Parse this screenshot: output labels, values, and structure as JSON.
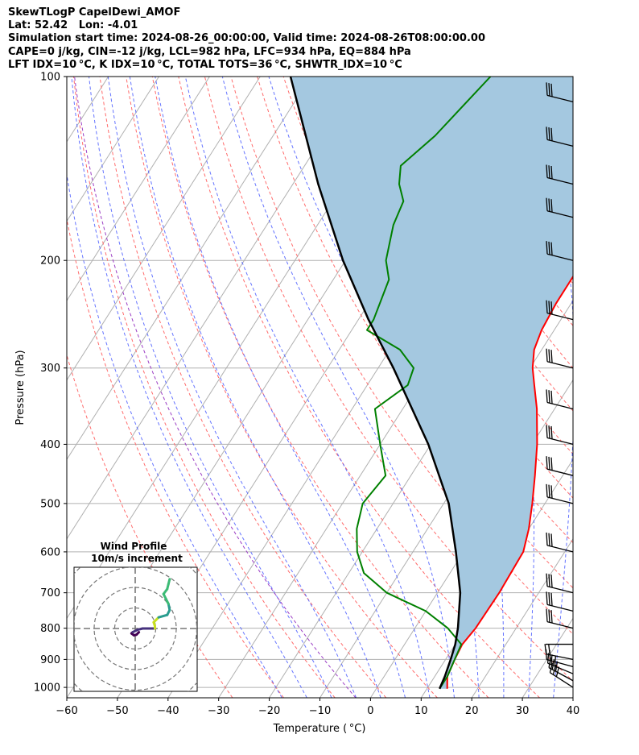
{
  "header": {
    "line1": "SkewTLogP CapelDewi_AMOF",
    "line2": "Lat: 52.42   Lon: -4.01",
    "line3": "Simulation start time: 2024-08-26_00:00:00, Valid time: 2024-08-26T08:00:00.00",
    "line4": "CAPE=0 j/kg, CIN=-12 j/kg, LCL=982 hPa, LFC=934 hPa, EQ=884 hPa",
    "line5": "LFT IDX=10$^\\circ$C, K IDX=10$^\\circ$C, TOTAL TOTS=36$^\\circ$C, SHWTR_IDX=10$^\\circ$C"
  },
  "header_display": {
    "line5": "LFT IDX=10 °C, K IDX=10 °C, TOTAL TOTS=36 °C, SHWTR_IDX=10 °C"
  },
  "chart_data": {
    "type": "line",
    "subtype": "skew-T log-P",
    "xlabel": "Temperature ( °C)",
    "ylabel": "Pressure (hPa)",
    "xlim": [
      -60,
      40
    ],
    "ylim": [
      1040,
      100
    ],
    "y_scale": "log",
    "x_ticks": [
      "−60",
      "−50",
      "−40",
      "−30",
      "−20",
      "−10",
      "0",
      "10",
      "20",
      "30",
      "40"
    ],
    "y_ticks": [
      "100",
      "200",
      "300",
      "400",
      "500",
      "600",
      "700",
      "800",
      "900",
      "1000"
    ],
    "grid": true,
    "series": [
      {
        "name": "temperature",
        "color": "#ff0000",
        "points": [
          [
            1005,
            14.0
          ],
          [
            960,
            12.5
          ],
          [
            900,
            11.8
          ],
          [
            850,
            11.4
          ],
          [
            800,
            12.0
          ],
          [
            700,
            12.2
          ],
          [
            600,
            11.8
          ],
          [
            550,
            10.0
          ],
          [
            500,
            7.5
          ],
          [
            450,
            4.5
          ],
          [
            400,
            1.0
          ],
          [
            350,
            -3.5
          ],
          [
            320,
            -7.0
          ],
          [
            300,
            -9.5
          ],
          [
            280,
            -11.5
          ],
          [
            260,
            -12.5
          ],
          [
            235,
            -13.0
          ],
          [
            205,
            -13.0
          ],
          [
            200,
            -12.0
          ],
          [
            185,
            -13.0
          ],
          [
            170,
            -15.0
          ],
          [
            155,
            -19.0
          ],
          [
            140,
            -24.0
          ],
          [
            125,
            -29.0
          ],
          [
            110,
            -33.0
          ],
          [
            100,
            -36.0
          ]
        ]
      },
      {
        "name": "dewpoint",
        "color": "#008000",
        "points": [
          [
            1005,
            12.5
          ],
          [
            960,
            12.5
          ],
          [
            900,
            11.8
          ],
          [
            850,
            11.2
          ],
          [
            800,
            6.5
          ],
          [
            750,
            0.0
          ],
          [
            700,
            -10.0
          ],
          [
            650,
            -17.0
          ],
          [
            600,
            -21.0
          ],
          [
            550,
            -24.0
          ],
          [
            500,
            -26.0
          ],
          [
            450,
            -25.0
          ],
          [
            400,
            -30.0
          ],
          [
            350,
            -35.5
          ],
          [
            320,
            -32.0
          ],
          [
            300,
            -33.0
          ],
          [
            280,
            -38.0
          ],
          [
            260,
            -47.0
          ],
          [
            250,
            -47.0
          ],
          [
            215,
            -49.0
          ],
          [
            200,
            -52.0
          ],
          [
            175,
            -55.0
          ],
          [
            160,
            -56.0
          ],
          [
            150,
            -59.0
          ],
          [
            140,
            -61.0
          ],
          [
            125,
            -58.0
          ],
          [
            110,
            -56.0
          ],
          [
            100,
            -54.5
          ]
        ]
      },
      {
        "name": "parcel",
        "color": "#000000",
        "points": [
          [
            1005,
            12.5
          ],
          [
            960,
            12.0
          ],
          [
            900,
            11.0
          ],
          [
            850,
            10.0
          ],
          [
            800,
            8.5
          ],
          [
            700,
            4.5
          ],
          [
            600,
            -1.5
          ],
          [
            500,
            -9.0
          ],
          [
            400,
            -20.5
          ],
          [
            300,
            -37.0
          ],
          [
            250,
            -48.0
          ],
          [
            200,
            -60.5
          ],
          [
            150,
            -75.0
          ],
          [
            100,
            -94.0
          ]
        ]
      }
    ],
    "shading": {
      "between": [
        "temperature",
        "parcel"
      ],
      "color": "#a4c8e0"
    },
    "wind_barbs": [
      {
        "p": 1000,
        "u": -28,
        "v": 18
      },
      {
        "p": 975,
        "u": -26,
        "v": 14
      },
      {
        "p": 950,
        "u": -24,
        "v": 10
      },
      {
        "p": 925,
        "u": -22,
        "v": 6
      },
      {
        "p": 900,
        "u": -20,
        "v": 4
      },
      {
        "p": 850,
        "u": -3,
        "v": 0
      },
      {
        "p": 800,
        "u": 0,
        "v": 0
      },
      {
        "p": 750,
        "u": 0,
        "v": 0
      },
      {
        "p": 700,
        "u": 0,
        "v": 0
      },
      {
        "p": 600,
        "u": 0,
        "v": 0
      },
      {
        "p": 500,
        "u": 0,
        "v": 0
      },
      {
        "p": 450,
        "u": 0,
        "v": 0
      },
      {
        "p": 400,
        "u": 0,
        "v": 0
      },
      {
        "p": 350,
        "u": 0,
        "v": 0
      },
      {
        "p": 300,
        "u": 0,
        "v": 0
      },
      {
        "p": 250,
        "u": 0,
        "v": 0
      },
      {
        "p": 200,
        "u": 0,
        "v": 0
      },
      {
        "p": 170,
        "u": 0,
        "v": 0
      },
      {
        "p": 150,
        "u": 0,
        "v": 0
      },
      {
        "p": 130,
        "u": 0,
        "v": 0
      },
      {
        "p": 110,
        "u": 0,
        "v": 0
      }
    ],
    "hodograph": {
      "title": "Wind Profile",
      "subtitle": "10m/s increment",
      "ring_step_ms": 10,
      "trace": [
        [
          3,
          3
        ],
        [
          1,
          5
        ],
        [
          -1,
          5.5
        ],
        [
          -3,
          4
        ],
        [
          -2,
          3
        ],
        [
          2,
          1
        ],
        [
          6,
          0
        ],
        [
          16,
          0
        ],
        [
          16,
          -2
        ],
        [
          15,
          -5
        ],
        [
          19,
          -9
        ],
        [
          26,
          -11
        ],
        [
          28,
          -15
        ],
        [
          27,
          -20
        ],
        [
          25,
          -24
        ],
        [
          23,
          -28
        ],
        [
          26,
          -32
        ],
        [
          27,
          -36
        ],
        [
          28,
          -40
        ]
      ]
    }
  }
}
